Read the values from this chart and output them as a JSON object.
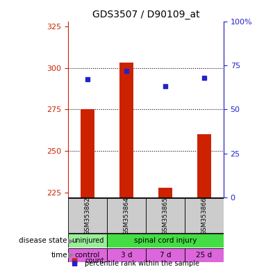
{
  "title": "GDS3507 / D90109_at",
  "samples": [
    "GSM353862",
    "GSM353864",
    "GSM353865",
    "GSM353866"
  ],
  "count_values": [
    275,
    303,
    228,
    260
  ],
  "count_baseline": 222,
  "percentile_values": [
    67,
    72,
    63,
    68
  ],
  "ylim_left": [
    222,
    328
  ],
  "ylim_right": [
    0,
    100
  ],
  "yticks_left": [
    225,
    250,
    275,
    300,
    325
  ],
  "yticks_right": [
    0,
    25,
    50,
    75,
    100
  ],
  "ytick_labels_right": [
    "0",
    "25",
    "50",
    "75",
    "100%"
  ],
  "bar_color": "#cc2200",
  "square_color": "#2222cc",
  "grid_color": "#000000",
  "disease_state_labels": [
    "uninjured",
    "spinal cord injury"
  ],
  "disease_state_colors": [
    "#99ee99",
    "#44dd44"
  ],
  "time_labels": [
    "control",
    "3 d",
    "7 d",
    "25 d"
  ],
  "time_color": "#dd66dd",
  "sample_box_color": "#cccccc",
  "legend_count_color": "#cc2200",
  "legend_pct_color": "#2222cc",
  "left_tick_color": "#cc2200",
  "right_tick_color": "#2222cc",
  "dotted_lines": [
    300,
    275,
    250
  ]
}
